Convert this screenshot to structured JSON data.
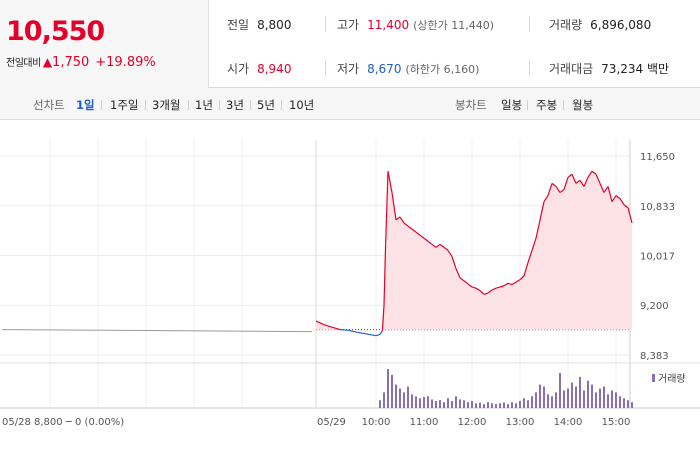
{
  "quote": {
    "price": "10,550",
    "change_label": "전일대비",
    "change_arrow": "▲",
    "change_amount": "1,750",
    "change_percent": "+19.89%",
    "up_color": "#e4002b",
    "down_color": "#1d5fd1"
  },
  "stats": {
    "prev_close": {
      "label": "전일",
      "value": "8,800"
    },
    "open": {
      "label": "시가",
      "value": "8,940"
    },
    "high": {
      "label": "고가",
      "value": "11,400",
      "sub": "(상한가 11,440)"
    },
    "low": {
      "label": "저가",
      "value": "8,670",
      "sub": "(하한가 6,160)"
    },
    "volume": {
      "label": "거래량",
      "value": "6,896,080"
    },
    "amount": {
      "label": "거래대금",
      "value": "73,234 백만"
    }
  },
  "periods": {
    "label": "선차트",
    "items": [
      "1일",
      "1주일",
      "3개월",
      "1년",
      "3년",
      "5년",
      "10년"
    ],
    "active": "1일"
  },
  "candles": {
    "label": "봉차트",
    "items": [
      "일봉",
      "주봉",
      "월봉"
    ]
  },
  "chart_data": {
    "type": "line",
    "y_ticks": [
      "11,650",
      "10,833",
      "10,017",
      "9,200",
      "8,383"
    ],
    "ylim": [
      8383,
      11650
    ],
    "reference_price": 8800,
    "x_ticks": [
      "05/29",
      "10:00",
      "11:00",
      "12:00",
      "13:00",
      "14:00",
      "15:00"
    ],
    "previous_session": {
      "label": "05/28",
      "close_text": "8,800 ─ 0 (0.00%)",
      "price": 8800
    },
    "series": [
      {
        "x": [
          "09:00",
          "09:10",
          "09:20",
          "09:30",
          "09:40",
          "09:50",
          "10:00",
          "10:05",
          "10:08",
          "10:10",
          "10:12",
          "10:15",
          "10:20",
          "10:25",
          "10:30",
          "10:35",
          "10:40",
          "10:45",
          "10:50",
          "10:55",
          "11:00",
          "11:05",
          "11:10",
          "11:15",
          "11:20",
          "11:25",
          "11:30",
          "11:35",
          "11:40",
          "11:45",
          "11:50",
          "11:55",
          "12:00",
          "12:05",
          "12:10",
          "12:15",
          "12:20",
          "12:25",
          "12:30",
          "12:35",
          "12:40",
          "12:45",
          "12:50",
          "12:55",
          "13:00",
          "13:05",
          "13:10",
          "13:15",
          "13:20",
          "13:25",
          "13:30",
          "13:35",
          "13:40",
          "13:45",
          "13:50",
          "13:55",
          "14:00",
          "14:05",
          "14:10",
          "14:15",
          "14:20",
          "14:25",
          "14:30",
          "14:35",
          "14:40",
          "14:45",
          "14:50",
          "14:55",
          "15:00",
          "15:05",
          "15:10",
          "15:15",
          "15:20"
        ],
        "values": [
          8940,
          8880,
          8840,
          8800,
          8790,
          8760,
          8700,
          8720,
          8780,
          9200,
          10200,
          11400,
          11050,
          10600,
          10650,
          10550,
          10500,
          10450,
          10400,
          10350,
          10300,
          10250,
          10200,
          10150,
          10200,
          10150,
          10100,
          10000,
          9800,
          9650,
          9600,
          9550,
          9500,
          9480,
          9440,
          9380,
          9400,
          9450,
          9480,
          9500,
          9520,
          9560,
          9540,
          9580,
          9620,
          9680,
          9900,
          10100,
          10300,
          10600,
          10900,
          11000,
          11200,
          11150,
          11050,
          11100,
          11300,
          11350,
          11200,
          11250,
          11150,
          11300,
          11400,
          11350,
          11200,
          11050,
          11150,
          10900,
          11000,
          10950,
          10850,
          10800,
          10550
        ]
      }
    ],
    "volume_legend": "거래량",
    "volume": {
      "x": [
        "10:05",
        "10:10",
        "10:15",
        "10:20",
        "10:25",
        "10:30",
        "10:35",
        "10:40",
        "10:45",
        "10:50",
        "10:55",
        "11:00",
        "11:05",
        "11:10",
        "11:15",
        "11:20",
        "11:25",
        "11:30",
        "11:35",
        "11:40",
        "11:45",
        "11:50",
        "11:55",
        "12:00",
        "12:05",
        "12:10",
        "12:15",
        "12:20",
        "12:25",
        "12:30",
        "12:35",
        "12:40",
        "12:45",
        "12:50",
        "12:55",
        "13:00",
        "13:05",
        "13:10",
        "13:15",
        "13:20",
        "13:25",
        "13:30",
        "13:35",
        "13:40",
        "13:45",
        "13:50",
        "13:55",
        "14:00",
        "14:05",
        "14:10",
        "14:15",
        "14:20",
        "14:25",
        "14:30",
        "14:35",
        "14:40",
        "14:45",
        "14:50",
        "14:55",
        "15:00",
        "15:05",
        "15:10",
        "15:15",
        "15:20"
      ],
      "values": [
        20,
        40,
        100,
        85,
        60,
        50,
        40,
        55,
        35,
        30,
        25,
        28,
        30,
        22,
        18,
        20,
        15,
        25,
        18,
        30,
        22,
        20,
        15,
        18,
        12,
        14,
        10,
        15,
        12,
        10,
        12,
        14,
        10,
        15,
        12,
        18,
        25,
        20,
        30,
        40,
        60,
        55,
        35,
        30,
        40,
        90,
        45,
        50,
        65,
        55,
        80,
        45,
        70,
        60,
        40,
        50,
        55,
        35,
        45,
        40,
        30,
        25,
        20,
        15
      ]
    },
    "grid": true
  }
}
